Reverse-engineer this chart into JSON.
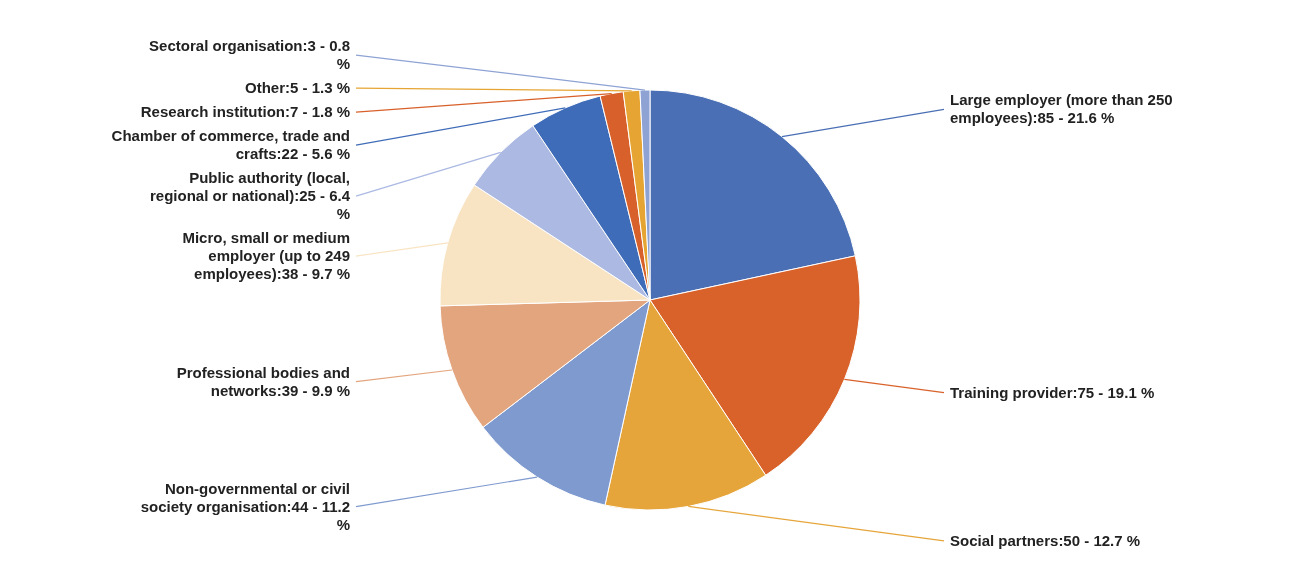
{
  "chart_data": {
    "type": "pie",
    "categories": [
      "Large employer (more than 250 employees)",
      "Training provider",
      "Social partners",
      "Non-governmental or civil society organisation",
      "Professional bodies and networks",
      "Micro, small or medium employer (up to 249 employees)",
      "Public authority (local, regional or national)",
      "Chamber of commerce, trade and crafts",
      "Research institution",
      "Other",
      "Sectoral organisation"
    ],
    "values": [
      85,
      75,
      50,
      44,
      39,
      38,
      25,
      22,
      7,
      5,
      3
    ],
    "value_labels": [
      ":85 - 21.6 %",
      ":75 - 19.1 %",
      ":50 - 12.7 %",
      ":44 - 11.2 %",
      ":39 - 9.9 %",
      ":38 - 9.7 %",
      ":25 - 6.4 %",
      ":22 - 5.6 %",
      ":7 - 1.8 %",
      ":5 - 1.3 %",
      ":3 - 0.8 %"
    ],
    "colors": [
      "#4a6fb5",
      "#d9622b",
      "#e6a53a",
      "#7f9acf",
      "#e3a57d",
      "#f8e4c3",
      "#abb9e3",
      "#3f6cb8",
      "#d8602a",
      "#e6a532",
      "#8ea3d4"
    ]
  }
}
